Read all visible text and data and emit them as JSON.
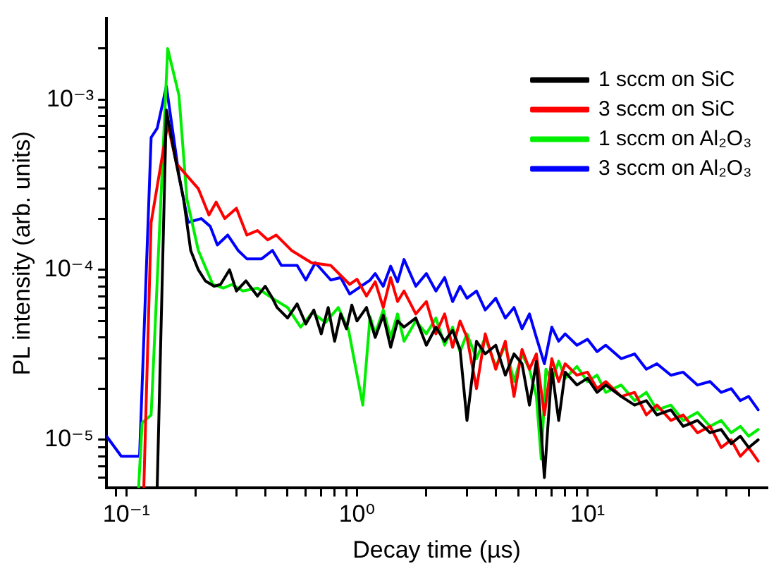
{
  "chart_data": {
    "type": "line",
    "xlabel": "Decay time (µs)",
    "ylabel": "PL intensity (arb. units)",
    "log": "xy",
    "grid": false,
    "legend": "top right",
    "marker": "none",
    "line_style": "solid",
    "xlim": [
      0.082,
      60
    ],
    "ylim": [
      5.2e-06,
      0.003
    ],
    "xticks": [
      {
        "value": 0.09,
        "label": null
      },
      {
        "value": 0.1,
        "label": "10⁻¹"
      },
      {
        "value": 0.2,
        "label": null
      },
      {
        "value": 0.3,
        "label": null
      },
      {
        "value": 0.4,
        "label": null
      },
      {
        "value": 0.5,
        "label": null
      },
      {
        "value": 0.6,
        "label": null
      },
      {
        "value": 0.7,
        "label": null
      },
      {
        "value": 0.8,
        "label": null
      },
      {
        "value": 0.9,
        "label": null
      },
      {
        "value": 1,
        "label": "10⁰"
      },
      {
        "value": 2,
        "label": null
      },
      {
        "value": 3,
        "label": null
      },
      {
        "value": 4,
        "label": null
      },
      {
        "value": 5,
        "label": null
      },
      {
        "value": 6,
        "label": null
      },
      {
        "value": 7,
        "label": null
      },
      {
        "value": 8,
        "label": null
      },
      {
        "value": 9,
        "label": null
      },
      {
        "value": 10,
        "label": "10¹"
      },
      {
        "value": 20,
        "label": null
      },
      {
        "value": 30,
        "label": null
      },
      {
        "value": 40,
        "label": null
      },
      {
        "value": 50,
        "label": null
      }
    ],
    "yticks": [
      {
        "value": 6e-06,
        "label": null
      },
      {
        "value": 7e-06,
        "label": null
      },
      {
        "value": 8e-06,
        "label": null
      },
      {
        "value": 9e-06,
        "label": null
      },
      {
        "value": 1e-05,
        "label": "10⁻⁵"
      },
      {
        "value": 2e-05,
        "label": null
      },
      {
        "value": 3e-05,
        "label": null
      },
      {
        "value": 4e-05,
        "label": null
      },
      {
        "value": 5e-05,
        "label": null
      },
      {
        "value": 6e-05,
        "label": null
      },
      {
        "value": 7e-05,
        "label": null
      },
      {
        "value": 8e-05,
        "label": null
      },
      {
        "value": 9e-05,
        "label": null
      },
      {
        "value": 0.0001,
        "label": "10⁻⁴"
      },
      {
        "value": 0.0002,
        "label": null
      },
      {
        "value": 0.0003,
        "label": null
      },
      {
        "value": 0.0004,
        "label": null
      },
      {
        "value": 0.0005,
        "label": null
      },
      {
        "value": 0.0006,
        "label": null
      },
      {
        "value": 0.0007,
        "label": null
      },
      {
        "value": 0.0008,
        "label": null
      },
      {
        "value": 0.0009,
        "label": null
      },
      {
        "value": 0.001,
        "label": "10⁻³"
      },
      {
        "value": 0.002,
        "label": null
      }
    ],
    "series": [
      {
        "name": "1 sccm on SiC",
        "color": "#000000",
        "x": [
          0.136,
          0.149,
          0.163,
          0.177,
          0.19,
          0.205,
          0.22,
          0.24,
          0.256,
          0.28,
          0.3,
          0.33,
          0.37,
          0.4,
          0.43,
          0.45,
          0.5,
          0.55,
          0.6,
          0.65,
          0.7,
          0.75,
          0.8,
          0.85,
          0.9,
          0.95,
          1.0,
          1.1,
          1.2,
          1.3,
          1.4,
          1.5,
          1.6,
          1.8,
          2.0,
          2.2,
          2.4,
          2.6,
          2.8,
          3.0,
          3.3,
          3.6,
          4,
          4.4,
          4.8,
          5.2,
          5.6,
          6,
          6.5,
          7,
          7.5,
          8,
          9,
          10,
          11,
          12,
          14,
          16,
          18,
          20,
          23,
          26,
          30,
          34,
          38,
          42,
          46,
          50,
          55
        ],
        "values": [
          5.3e-06,
          0.00087,
          0.00045,
          0.00026,
          0.00013,
          0.0001,
          8.6e-05,
          8e-05,
          8.2e-05,
          0.0001,
          7.5e-05,
          8.6e-05,
          7e-05,
          8e-05,
          6.8e-05,
          6e-05,
          5.2e-05,
          6.3e-05,
          4.8e-05,
          5.8e-05,
          4.2e-05,
          6e-05,
          3.8e-05,
          5.5e-05,
          4.5e-05,
          6.2e-05,
          5e-05,
          6e-05,
          4e-05,
          5.4e-05,
          3.5e-05,
          5e-05,
          4.6e-05,
          5.2e-05,
          3.6e-05,
          4.6e-05,
          3.8e-05,
          4.4e-05,
          3.4e-05,
          1.3e-05,
          3.8e-05,
          3.2e-05,
          3.6e-05,
          2.4e-05,
          3.2e-05,
          2.8e-05,
          1.6e-05,
          2.9e-05,
          6e-06,
          2.6e-05,
          1.3e-05,
          2.5e-05,
          2.1e-05,
          2.3e-05,
          1.9e-05,
          2.1e-05,
          1.8e-05,
          1.6e-05,
          1.7e-05,
          1.4e-05,
          1.5e-05,
          1.2e-05,
          1.3e-05,
          1.1e-05,
          1.15e-05,
          9.5e-06,
          1.05e-05,
          9e-06,
          1e-05
        ]
      },
      {
        "name": "3 sccm on SiC",
        "color": "#ff0000",
        "x": [
          0.119,
          0.128,
          0.151,
          0.165,
          0.205,
          0.228,
          0.245,
          0.267,
          0.3,
          0.333,
          0.37,
          0.41,
          0.446,
          0.52,
          0.635,
          0.77,
          0.93,
          1.0,
          1.1,
          1.2,
          1.3,
          1.4,
          1.5,
          1.6,
          1.8,
          2.0,
          2.2,
          2.4,
          2.6,
          2.8,
          3.0,
          3.3,
          3.6,
          4,
          4.4,
          4.8,
          5.2,
          5.6,
          6,
          6.5,
          7,
          7.5,
          8,
          9,
          10,
          11,
          12,
          14,
          16,
          18,
          20,
          23,
          26,
          30,
          34,
          38,
          42,
          46,
          50,
          55
        ],
        "values": [
          5.3e-06,
          0.00019,
          0.00072,
          0.00042,
          0.0003,
          0.00021,
          0.00025,
          0.0002,
          0.00023,
          0.00016,
          0.00017,
          0.00015,
          0.00016,
          0.00013,
          0.00011,
          0.000106,
          8.2e-05,
          8.8e-05,
          7e-05,
          8.5e-05,
          6e-05,
          9e-05,
          6.5e-05,
          7.5e-05,
          5.5e-05,
          6.5e-05,
          4.2e-05,
          5.5e-05,
          3.5e-05,
          5e-05,
          4e-05,
          2e-05,
          4.2e-05,
          2.6e-05,
          3.8e-05,
          1.8e-05,
          3.4e-05,
          2.6e-05,
          3.2e-05,
          1.4e-05,
          3e-05,
          2.2e-05,
          2.8e-05,
          2.4e-05,
          2.5e-05,
          2e-05,
          2.2e-05,
          1.8e-05,
          1.9e-05,
          1.4e-05,
          1.6e-05,
          1.3e-05,
          1.4e-05,
          1.1e-05,
          1.2e-05,
          9e-06,
          1e-05,
          8e-06,
          9e-06,
          7.5e-06
        ]
      },
      {
        "name": "1 sccm on Al₂O₃",
        "color": "#00ee00",
        "x": [
          0.113,
          0.117,
          0.128,
          0.151,
          0.169,
          0.183,
          0.205,
          0.237,
          0.263,
          0.287,
          0.32,
          0.37,
          0.43,
          0.5,
          0.57,
          0.64,
          0.73,
          0.83,
          0.92,
          1.06,
          1.14,
          1.2,
          1.3,
          1.4,
          1.5,
          1.6,
          1.8,
          2.0,
          2.2,
          2.4,
          2.6,
          2.8,
          3.0,
          3.3,
          3.6,
          4,
          4.4,
          4.8,
          5.2,
          5.6,
          6,
          6.3,
          6.6,
          7,
          7.5,
          8,
          9,
          10,
          11,
          12,
          14,
          16,
          18,
          20,
          23,
          26,
          30,
          34,
          38,
          42,
          46,
          50,
          55
        ],
        "values": [
          5.3e-06,
          1.26e-05,
          1.4e-05,
          0.002,
          0.00106,
          0.00026,
          0.00013,
          8.2e-05,
          7.8e-05,
          8.2e-05,
          7.5e-05,
          7.8e-05,
          6.8e-05,
          6e-05,
          4.6e-05,
          5.6e-05,
          4.9e-05,
          6e-05,
          4.4e-05,
          1.6e-05,
          5.3e-05,
          4.2e-05,
          5.8e-05,
          4e-05,
          5.5e-05,
          3.8e-05,
          5e-05,
          4.2e-05,
          5.2e-05,
          3.6e-05,
          4.6e-05,
          3.3e-05,
          4.2e-05,
          3e-05,
          4e-05,
          2.7e-05,
          3.6e-05,
          2.2e-05,
          3.2e-05,
          2.6e-05,
          1.8e-05,
          7.7e-06,
          2.6e-05,
          2.2e-05,
          2.9e-05,
          2.3e-05,
          2.7e-05,
          2.2e-05,
          2.4e-05,
          1.9e-05,
          2.1e-05,
          1.7e-05,
          1.9e-05,
          1.5e-05,
          1.6e-05,
          1.3e-05,
          1.45e-05,
          1.2e-05,
          1.3e-05,
          1.1e-05,
          1.2e-05,
          1.05e-05,
          1.15e-05
        ]
      },
      {
        "name": "3 sccm on Al₂O₃",
        "color": "#0000ff",
        "x": [
          0.082,
          0.095,
          0.114,
          0.128,
          0.136,
          0.149,
          0.169,
          0.185,
          0.211,
          0.231,
          0.248,
          0.275,
          0.305,
          0.333,
          0.386,
          0.43,
          0.47,
          0.55,
          0.6,
          0.66,
          0.77,
          0.85,
          0.93,
          1.14,
          1.2,
          1.3,
          1.4,
          1.5,
          1.6,
          1.8,
          2.0,
          2.2,
          2.4,
          2.6,
          2.8,
          3.0,
          3.3,
          3.6,
          4,
          4.4,
          4.8,
          5.2,
          5.6,
          6,
          6.5,
          7,
          7.5,
          8,
          9,
          10,
          11,
          12,
          14,
          16,
          18,
          20,
          23,
          26,
          30,
          34,
          38,
          42,
          46,
          50,
          55
        ],
        "values": [
          1.05e-05,
          8e-06,
          8e-06,
          0.0006,
          0.00068,
          0.0012,
          0.00036,
          0.00019,
          0.0002,
          0.00018,
          0.00014,
          0.00016,
          0.00013,
          0.000116,
          0.000116,
          0.00013,
          0.000106,
          0.000106,
          8.7e-05,
          0.00011,
          8.7e-05,
          9e-05,
          7.2e-05,
          8.7e-05,
          9.5e-05,
          8e-05,
          0.000105,
          8.5e-05,
          0.000115,
          8e-05,
          9.5e-05,
          7.5e-05,
          9e-05,
          6.5e-05,
          8e-05,
          6.8e-05,
          7.5e-05,
          5.8e-05,
          6.8e-05,
          5.2e-05,
          6e-05,
          4.5e-05,
          5.5e-05,
          4e-05,
          2.8e-05,
          4.6e-05,
          3.8e-05,
          4.2e-05,
          3.6e-05,
          3.9e-05,
          3.3e-05,
          3.6e-05,
          3e-05,
          3.2e-05,
          2.6e-05,
          2.8e-05,
          2.4e-05,
          2.5e-05,
          2.1e-05,
          2.2e-05,
          1.9e-05,
          2e-05,
          1.7e-05,
          1.8e-05,
          1.5e-05
        ]
      }
    ]
  }
}
